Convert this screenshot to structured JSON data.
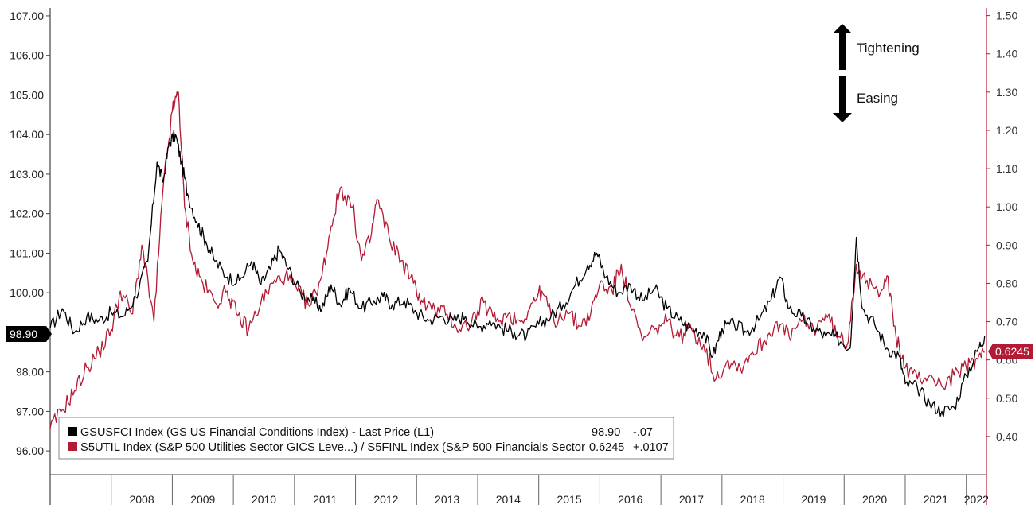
{
  "chart_data": {
    "type": "line",
    "x_categories": [
      "2008",
      "2009",
      "2010",
      "2011",
      "2012",
      "2013",
      "2014",
      "2015",
      "2016",
      "2017",
      "2018",
      "2019",
      "2020",
      "2021",
      "2022"
    ],
    "left_axis": {
      "ticks": [
        "107.00",
        "106.00",
        "105.00",
        "104.00",
        "103.00",
        "102.00",
        "101.00",
        "100.00",
        "98.00",
        "97.00",
        "96.00"
      ],
      "tick_values": [
        107,
        106,
        105,
        104,
        103,
        102,
        101,
        100,
        98,
        97,
        96
      ],
      "ylim": [
        95.4,
        107.2
      ]
    },
    "right_axis": {
      "ticks": [
        "1.50",
        "1.40",
        "1.30",
        "1.20",
        "1.10",
        "1.00",
        "0.90",
        "0.80",
        "0.70",
        "0.60",
        "0.50",
        "0.40"
      ],
      "tick_values": [
        1.5,
        1.4,
        1.3,
        1.2,
        1.1,
        1.0,
        0.9,
        0.8,
        0.7,
        0.6,
        0.5,
        0.4
      ],
      "ylim": [
        0.3,
        1.52
      ]
    },
    "series": [
      {
        "name": "GSUSFCI Index (GS US Financial Conditions Index) - Last Price (L1)",
        "axis": "left",
        "color": "#000000",
        "last_value": "98.90",
        "change": "-.07",
        "points": [
          [
            2007.0,
            99.1
          ],
          [
            2007.2,
            99.6
          ],
          [
            2007.4,
            99.0
          ],
          [
            2007.6,
            99.4
          ],
          [
            2007.8,
            99.3
          ],
          [
            2008.0,
            99.5
          ],
          [
            2008.2,
            99.4
          ],
          [
            2008.4,
            99.9
          ],
          [
            2008.6,
            100.8
          ],
          [
            2008.75,
            103.3
          ],
          [
            2008.85,
            102.8
          ],
          [
            2008.95,
            103.8
          ],
          [
            2009.05,
            104.0
          ],
          [
            2009.15,
            103.3
          ],
          [
            2009.25,
            102.5
          ],
          [
            2009.4,
            101.8
          ],
          [
            2009.55,
            101.3
          ],
          [
            2009.7,
            100.8
          ],
          [
            2009.9,
            100.4
          ],
          [
            2010.1,
            100.3
          ],
          [
            2010.3,
            100.8
          ],
          [
            2010.45,
            100.2
          ],
          [
            2010.6,
            100.6
          ],
          [
            2010.75,
            101.1
          ],
          [
            2010.9,
            100.6
          ],
          [
            2011.1,
            100.0
          ],
          [
            2011.3,
            99.8
          ],
          [
            2011.45,
            99.6
          ],
          [
            2011.6,
            100.2
          ],
          [
            2011.75,
            99.7
          ],
          [
            2011.9,
            100.1
          ],
          [
            2012.1,
            99.6
          ],
          [
            2012.3,
            99.8
          ],
          [
            2012.45,
            99.9
          ],
          [
            2012.6,
            99.7
          ],
          [
            2012.8,
            99.8
          ],
          [
            2013.0,
            99.5
          ],
          [
            2013.2,
            99.3
          ],
          [
            2013.4,
            99.4
          ],
          [
            2013.6,
            99.3
          ],
          [
            2013.8,
            99.4
          ],
          [
            2014.0,
            99.1
          ],
          [
            2014.2,
            99.3
          ],
          [
            2014.4,
            99.1
          ],
          [
            2014.6,
            99.0
          ],
          [
            2014.8,
            98.9
          ],
          [
            2015.0,
            99.2
          ],
          [
            2015.2,
            99.4
          ],
          [
            2015.4,
            99.7
          ],
          [
            2015.6,
            100.2
          ],
          [
            2015.8,
            100.7
          ],
          [
            2015.95,
            101.0
          ],
          [
            2016.1,
            100.4
          ],
          [
            2016.3,
            100.0
          ],
          [
            2016.5,
            100.2
          ],
          [
            2016.7,
            99.8
          ],
          [
            2016.9,
            100.1
          ],
          [
            2017.1,
            99.6
          ],
          [
            2017.3,
            99.3
          ],
          [
            2017.5,
            99.1
          ],
          [
            2017.7,
            99.0
          ],
          [
            2017.85,
            98.4
          ],
          [
            2018.0,
            99.1
          ],
          [
            2018.2,
            99.2
          ],
          [
            2018.4,
            99.0
          ],
          [
            2018.6,
            99.3
          ],
          [
            2018.8,
            99.8
          ],
          [
            2018.95,
            100.4
          ],
          [
            2019.1,
            99.6
          ],
          [
            2019.3,
            99.4
          ],
          [
            2019.5,
            99.1
          ],
          [
            2019.7,
            98.9
          ],
          [
            2019.85,
            98.9
          ],
          [
            2020.1,
            98.6
          ],
          [
            2020.2,
            101.4
          ],
          [
            2020.3,
            99.6
          ],
          [
            2020.5,
            99.2
          ],
          [
            2020.7,
            98.6
          ],
          [
            2020.9,
            98.4
          ],
          [
            2021.0,
            97.7
          ],
          [
            2021.2,
            97.6
          ],
          [
            2021.4,
            97.2
          ],
          [
            2021.6,
            97.0
          ],
          [
            2021.8,
            97.1
          ],
          [
            2022.0,
            97.9
          ],
          [
            2022.2,
            98.6
          ],
          [
            2022.3,
            98.9
          ]
        ]
      },
      {
        "name": "S5UTIL Index (S&P 500 Utilities Sector GICS Leve...) / S5FINL Index (S&P 500 Financials Sector",
        "axis": "right",
        "color": "#b31b34",
        "last_value": "0.6245",
        "change": "+.0107",
        "points": [
          [
            2007.0,
            0.42
          ],
          [
            2007.2,
            0.47
          ],
          [
            2007.4,
            0.52
          ],
          [
            2007.6,
            0.58
          ],
          [
            2007.8,
            0.62
          ],
          [
            2008.0,
            0.68
          ],
          [
            2008.15,
            0.78
          ],
          [
            2008.35,
            0.72
          ],
          [
            2008.5,
            0.9
          ],
          [
            2008.7,
            0.7
          ],
          [
            2008.85,
            1.05
          ],
          [
            2009.0,
            1.25
          ],
          [
            2009.1,
            1.3
          ],
          [
            2009.2,
            1.0
          ],
          [
            2009.35,
            0.85
          ],
          [
            2009.5,
            0.8
          ],
          [
            2009.7,
            0.75
          ],
          [
            2009.9,
            0.78
          ],
          [
            2010.05,
            0.72
          ],
          [
            2010.25,
            0.68
          ],
          [
            2010.45,
            0.75
          ],
          [
            2010.65,
            0.8
          ],
          [
            2010.85,
            0.82
          ],
          [
            2011.05,
            0.78
          ],
          [
            2011.25,
            0.74
          ],
          [
            2011.45,
            0.82
          ],
          [
            2011.6,
            0.95
          ],
          [
            2011.75,
            1.05
          ],
          [
            2011.95,
            1.0
          ],
          [
            2012.1,
            0.86
          ],
          [
            2012.25,
            0.92
          ],
          [
            2012.35,
            1.02
          ],
          [
            2012.55,
            0.92
          ],
          [
            2012.75,
            0.86
          ],
          [
            2012.95,
            0.8
          ],
          [
            2013.1,
            0.75
          ],
          [
            2013.3,
            0.73
          ],
          [
            2013.5,
            0.72
          ],
          [
            2013.7,
            0.68
          ],
          [
            2013.9,
            0.7
          ],
          [
            2014.1,
            0.75
          ],
          [
            2014.3,
            0.7
          ],
          [
            2014.5,
            0.72
          ],
          [
            2014.7,
            0.7
          ],
          [
            2014.9,
            0.75
          ],
          [
            2015.05,
            0.78
          ],
          [
            2015.25,
            0.7
          ],
          [
            2015.45,
            0.73
          ],
          [
            2015.65,
            0.69
          ],
          [
            2015.85,
            0.72
          ],
          [
            2016.0,
            0.8
          ],
          [
            2016.2,
            0.78
          ],
          [
            2016.35,
            0.85
          ],
          [
            2016.5,
            0.74
          ],
          [
            2016.7,
            0.65
          ],
          [
            2016.9,
            0.68
          ],
          [
            2017.1,
            0.7
          ],
          [
            2017.3,
            0.66
          ],
          [
            2017.5,
            0.68
          ],
          [
            2017.7,
            0.64
          ],
          [
            2017.9,
            0.55
          ],
          [
            2018.1,
            0.6
          ],
          [
            2018.3,
            0.58
          ],
          [
            2018.5,
            0.62
          ],
          [
            2018.7,
            0.65
          ],
          [
            2018.9,
            0.7
          ],
          [
            2019.1,
            0.66
          ],
          [
            2019.3,
            0.7
          ],
          [
            2019.5,
            0.68
          ],
          [
            2019.7,
            0.72
          ],
          [
            2019.9,
            0.66
          ],
          [
            2020.05,
            0.64
          ],
          [
            2020.2,
            0.85
          ],
          [
            2020.35,
            0.8
          ],
          [
            2020.55,
            0.78
          ],
          [
            2020.7,
            0.82
          ],
          [
            2020.85,
            0.66
          ],
          [
            2021.0,
            0.58
          ],
          [
            2021.2,
            0.55
          ],
          [
            2021.4,
            0.56
          ],
          [
            2021.6,
            0.53
          ],
          [
            2021.8,
            0.56
          ],
          [
            2022.0,
            0.58
          ],
          [
            2022.15,
            0.6
          ],
          [
            2022.3,
            0.62
          ]
        ]
      }
    ],
    "annotations": {
      "up": "Tightening",
      "down": "Easing"
    },
    "legend": {
      "position": "bottom-left"
    },
    "grid": false
  }
}
